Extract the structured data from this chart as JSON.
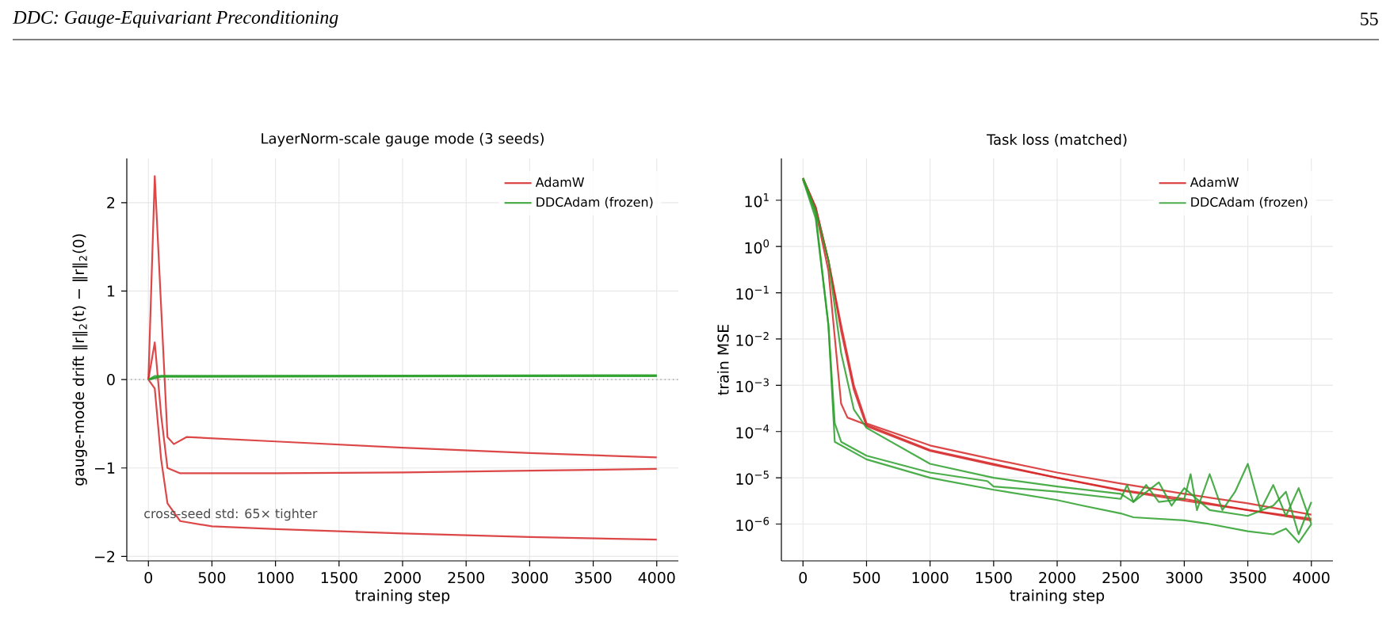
{
  "chart_data": [
    {
      "type": "line",
      "title": "LayerNorm-scale gauge mode (3 seeds)",
      "xlabel": "training step",
      "ylabel": "gauge-mode drift  ‖r‖$_{2}$(t) − ‖r‖$_{2}$(0)",
      "annotations": [
        "DDC: Gauge-Equivariant Preconditioning",
        "55",
        "cross-seed std: 65× tighter"
      ],
      "xlim": [
        -170,
        4170
      ],
      "ylim": [
        -2.05,
        2.5
      ],
      "xticks": [
        0,
        500,
        1000,
        1500,
        2000,
        2500,
        3000,
        3500,
        4000
      ],
      "yticks": [
        {
          "value": -2,
          "label": "−2"
        },
        {
          "value": -1,
          "label": "−1"
        },
        0,
        1,
        2
      ],
      "grid": true,
      "legend": "top right",
      "line_style": "solid",
      "ref_lines": [
        {
          "axis": "y",
          "value": 0,
          "label": null,
          "color": "#888888",
          "line_style": "dotted"
        }
      ],
      "series": [
        {
          "name": "AdamW",
          "color": "#d62728",
          "x": [
            0,
            50,
            150,
            200,
            300,
            1000,
            2000,
            3000,
            4000
          ],
          "values": [
            0,
            2.3,
            -0.65,
            -0.73,
            -0.65,
            -0.7,
            -0.77,
            -0.83,
            -0.88
          ]
        },
        {
          "color": "#d62728",
          "x": [
            0,
            50,
            100,
            150,
            250,
            1000,
            2000,
            3000,
            4000
          ],
          "values": [
            0,
            0.42,
            -0.4,
            -1.0,
            -1.06,
            -1.06,
            -1.05,
            -1.03,
            -1.01
          ]
        },
        {
          "color": "#d62728",
          "x": [
            0,
            50,
            100,
            150,
            250,
            500,
            1000,
            2000,
            3000,
            4000
          ],
          "values": [
            0,
            -0.1,
            -0.9,
            -1.4,
            -1.6,
            -1.66,
            -1.69,
            -1.74,
            -1.78,
            -1.81
          ]
        },
        {
          "name": "DDCAdam (frozen)",
          "color": "#2ca02c",
          "x": [
            0,
            100,
            4000
          ],
          "values": [
            0,
            0.04,
            0.04
          ]
        },
        {
          "color": "#2ca02c",
          "x": [
            0,
            100,
            4000
          ],
          "values": [
            0,
            0.03,
            0.04
          ]
        },
        {
          "color": "#2ca02c",
          "x": [
            0,
            50,
            4000
          ],
          "values": [
            0,
            0.04,
            0.05
          ]
        }
      ]
    },
    {
      "type": "line",
      "title": "Task loss (matched)",
      "xlabel": "training step",
      "ylabel": "train MSE",
      "log": "y",
      "xlim": [
        -170,
        4170
      ],
      "ylim": [
        1.6e-07,
        80
      ],
      "xticks": [
        0,
        500,
        1000,
        1500,
        2000,
        2500,
        3000,
        3500,
        4000
      ],
      "yticks": [
        {
          "value": 1e-06,
          "label": "10$^{−6}$"
        },
        {
          "value": 1e-05,
          "label": "10$^{−5}$"
        },
        {
          "value": 0.0001,
          "label": "10$^{−4}$"
        },
        {
          "value": 0.001,
          "label": "10$^{−3}$"
        },
        {
          "value": 0.01,
          "label": "10$^{−2}$"
        },
        {
          "value": 0.1,
          "label": "10$^{−1}$"
        },
        {
          "value": 1,
          "label": "10$^{0}$"
        },
        {
          "value": 10,
          "label": "10$^{1}$"
        }
      ],
      "grid": true,
      "legend": "top right",
      "line_style": "solid",
      "series": [
        {
          "name": "AdamW",
          "color": "#d62728",
          "x": [
            0,
            100,
            200,
            300,
            400,
            500,
            1000,
            1500,
            2000,
            2500,
            3000,
            3500,
            4000
          ],
          "values": [
            30,
            7,
            0.5,
            0.02,
            0.001,
            0.00015,
            5e-05,
            2.5e-05,
            1.3e-05,
            7.5e-06,
            4.5e-06,
            2.8e-06,
            1.6e-06
          ]
        },
        {
          "color": "#d62728",
          "x": [
            0,
            100,
            200,
            300,
            350,
            500,
            1000,
            1500,
            2000,
            2500,
            3000,
            3500,
            4000
          ],
          "values": [
            28,
            6,
            0.3,
            0.0004,
            0.0002,
            0.00014,
            4e-05,
            2e-05,
            1e-05,
            5.5e-06,
            3.5e-06,
            2e-06,
            1.2e-06
          ]
        },
        {
          "color": "#d62728",
          "x": [
            0,
            100,
            200,
            300,
            400,
            500,
            1000,
            1500,
            2000,
            2500,
            3000,
            3500,
            4000
          ],
          "values": [
            30,
            7,
            0.5,
            0.015,
            0.0008,
            0.00013,
            3.8e-05,
            1.9e-05,
            1e-05,
            5.3e-06,
            3.2e-06,
            2e-06,
            1.3e-06
          ]
        },
        {
          "name": "DDCAdam (frozen)",
          "color": "#2ca02c",
          "x": [
            0,
            100,
            200,
            250,
            500,
            1000,
            1500,
            2000,
            2200,
            2500,
            2600,
            3000,
            3200,
            3500,
            3700,
            3800,
            3900,
            4000
          ],
          "values": [
            30,
            5,
            0.02,
            6e-05,
            2.5e-05,
            1e-05,
            5.5e-06,
            3.3e-06,
            2.5e-06,
            1.7e-06,
            1.4e-06,
            1.2e-06,
            1e-06,
            7e-07,
            6e-07,
            8e-07,
            4e-07,
            1e-06
          ]
        },
        {
          "color": "#2ca02c",
          "x": [
            0,
            100,
            200,
            250,
            300,
            500,
            1000,
            1450,
            1500,
            2000,
            2500,
            2550,
            2600,
            2700,
            2800,
            3000,
            3050,
            3100,
            3200,
            3300,
            3400,
            3500,
            3600,
            3700,
            3800,
            3900,
            4000
          ],
          "values": [
            28,
            4,
            0.02,
            0.00015,
            6e-05,
            3e-05,
            1.3e-05,
            8.5e-06,
            6.5e-06,
            5e-06,
            3.5e-06,
            7e-06,
            3e-06,
            7e-06,
            3e-06,
            3.5e-06,
            1.2e-05,
            2e-06,
            1.2e-05,
            2e-06,
            5e-06,
            2e-05,
            2e-06,
            7e-06,
            1.5e-06,
            6e-06,
            1e-06
          ]
        },
        {
          "color": "#2ca02c",
          "x": [
            0,
            100,
            200,
            300,
            400,
            500,
            1000,
            1500,
            2000,
            2500,
            2600,
            2800,
            2900,
            3000,
            3200,
            3500,
            3700,
            3800,
            3900,
            4000
          ],
          "values": [
            30,
            6,
            0.5,
            0.005,
            0.0003,
            0.00012,
            2e-05,
            1e-05,
            6.5e-06,
            4.5e-06,
            3e-06,
            8e-06,
            2.5e-06,
            6e-06,
            2e-06,
            1.5e-06,
            2.5e-06,
            5e-06,
            6e-07,
            3e-06
          ]
        }
      ]
    }
  ]
}
